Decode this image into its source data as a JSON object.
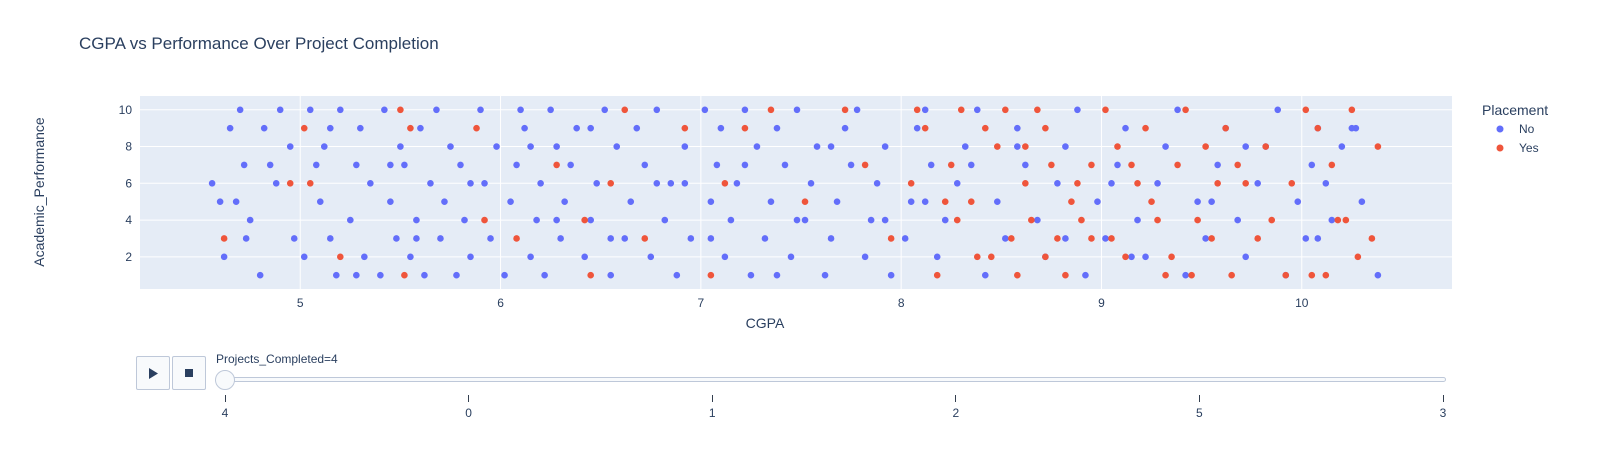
{
  "chart_data": {
    "type": "scatter",
    "title": "CGPA vs Performance Over Project Completion",
    "xlabel": "CGPA",
    "ylabel": "Academic_Performance",
    "xlim": [
      4.2,
      10.75
    ],
    "ylim": [
      0.25,
      10.75
    ],
    "xticks": [
      5,
      6,
      7,
      8,
      9,
      10
    ],
    "yticks": [
      2,
      4,
      6,
      8,
      10
    ],
    "grid": true,
    "background": "#e5ecf6",
    "legend": {
      "title": "Placement",
      "position": "right",
      "entries": [
        {
          "name": "No",
          "color": "#636efa"
        },
        {
          "name": "Yes",
          "color": "#ef553b"
        }
      ]
    },
    "series": [
      {
        "name": "No",
        "color": "#636efa",
        "points": [
          [
            4.56,
            6
          ],
          [
            4.6,
            5
          ],
          [
            4.65,
            9
          ],
          [
            4.62,
            2
          ],
          [
            4.7,
            10
          ],
          [
            4.68,
            5
          ],
          [
            4.72,
            7
          ],
          [
            4.75,
            4
          ],
          [
            4.73,
            3
          ],
          [
            4.8,
            1
          ],
          [
            4.82,
            9
          ],
          [
            4.85,
            7
          ],
          [
            4.9,
            10
          ],
          [
            4.88,
            6
          ],
          [
            4.95,
            8
          ],
          [
            4.97,
            3
          ],
          [
            5.02,
            2
          ],
          [
            5.05,
            10
          ],
          [
            5.08,
            7
          ],
          [
            5.1,
            5
          ],
          [
            5.12,
            8
          ],
          [
            5.15,
            3
          ],
          [
            5.18,
            1
          ],
          [
            5.2,
            10
          ],
          [
            5.25,
            4
          ],
          [
            5.28,
            7
          ],
          [
            5.3,
            9
          ],
          [
            5.32,
            2
          ],
          [
            5.35,
            6
          ],
          [
            5.4,
            1
          ],
          [
            5.42,
            10
          ],
          [
            5.45,
            5
          ],
          [
            5.48,
            3
          ],
          [
            5.5,
            8
          ],
          [
            5.52,
            7
          ],
          [
            5.55,
            2
          ],
          [
            5.58,
            4
          ],
          [
            5.6,
            9
          ],
          [
            5.62,
            1
          ],
          [
            5.65,
            6
          ],
          [
            5.68,
            10
          ],
          [
            5.7,
            3
          ],
          [
            5.72,
            5
          ],
          [
            5.75,
            8
          ],
          [
            5.78,
            1
          ],
          [
            5.8,
            7
          ],
          [
            5.82,
            4
          ],
          [
            5.85,
            2
          ],
          [
            5.9,
            10
          ],
          [
            5.92,
            6
          ],
          [
            5.95,
            3
          ],
          [
            5.98,
            8
          ],
          [
            6.02,
            1
          ],
          [
            6.05,
            5
          ],
          [
            6.08,
            7
          ],
          [
            6.1,
            10
          ],
          [
            6.12,
            9
          ],
          [
            6.15,
            2
          ],
          [
            6.18,
            4
          ],
          [
            6.2,
            6
          ],
          [
            6.22,
            1
          ],
          [
            6.25,
            10
          ],
          [
            6.28,
            8
          ],
          [
            6.3,
            3
          ],
          [
            6.32,
            5
          ],
          [
            6.35,
            7
          ],
          [
            6.38,
            9
          ],
          [
            6.42,
            2
          ],
          [
            6.45,
            4
          ],
          [
            6.48,
            6
          ],
          [
            6.52,
            10
          ],
          [
            6.55,
            1
          ],
          [
            6.58,
            8
          ],
          [
            6.62,
            3
          ],
          [
            6.65,
            5
          ],
          [
            6.68,
            9
          ],
          [
            6.72,
            7
          ],
          [
            6.75,
            2
          ],
          [
            6.78,
            10
          ],
          [
            6.82,
            4
          ],
          [
            6.85,
            6
          ],
          [
            6.88,
            1
          ],
          [
            6.92,
            8
          ],
          [
            6.95,
            3
          ],
          [
            7.02,
            10
          ],
          [
            7.05,
            5
          ],
          [
            7.08,
            7
          ],
          [
            7.1,
            9
          ],
          [
            7.12,
            2
          ],
          [
            7.15,
            4
          ],
          [
            7.18,
            6
          ],
          [
            7.22,
            10
          ],
          [
            7.25,
            1
          ],
          [
            7.28,
            8
          ],
          [
            7.32,
            3
          ],
          [
            7.35,
            5
          ],
          [
            7.38,
            9
          ],
          [
            7.42,
            7
          ],
          [
            7.45,
            2
          ],
          [
            7.48,
            10
          ],
          [
            7.52,
            4
          ],
          [
            7.55,
            6
          ],
          [
            7.58,
            8
          ],
          [
            7.62,
            1
          ],
          [
            7.65,
            3
          ],
          [
            7.68,
            5
          ],
          [
            7.72,
            9
          ],
          [
            7.75,
            7
          ],
          [
            7.78,
            10
          ],
          [
            7.82,
            2
          ],
          [
            7.85,
            4
          ],
          [
            7.88,
            6
          ],
          [
            7.92,
            8
          ],
          [
            7.95,
            1
          ],
          [
            8.02,
            3
          ],
          [
            8.05,
            5
          ],
          [
            8.08,
            9
          ],
          [
            8.12,
            10
          ],
          [
            8.15,
            7
          ],
          [
            8.18,
            2
          ],
          [
            8.22,
            4
          ],
          [
            8.28,
            6
          ],
          [
            8.32,
            8
          ],
          [
            8.38,
            10
          ],
          [
            8.42,
            1
          ],
          [
            8.48,
            5
          ],
          [
            8.52,
            3
          ],
          [
            8.58,
            9
          ],
          [
            8.62,
            7
          ],
          [
            8.68,
            4
          ],
          [
            8.72,
            2
          ],
          [
            8.78,
            6
          ],
          [
            8.82,
            8
          ],
          [
            8.88,
            10
          ],
          [
            8.92,
            1
          ],
          [
            8.98,
            5
          ],
          [
            9.02,
            3
          ],
          [
            9.08,
            7
          ],
          [
            9.12,
            9
          ],
          [
            9.18,
            4
          ],
          [
            9.22,
            2
          ],
          [
            9.28,
            6
          ],
          [
            9.32,
            8
          ],
          [
            9.38,
            10
          ],
          [
            9.42,
            1
          ],
          [
            9.48,
            5
          ],
          [
            9.52,
            3
          ],
          [
            9.58,
            7
          ],
          [
            9.62,
            9
          ],
          [
            9.68,
            4
          ],
          [
            9.72,
            2
          ],
          [
            9.78,
            6
          ],
          [
            9.82,
            8
          ],
          [
            9.88,
            10
          ],
          [
            9.92,
            1
          ],
          [
            9.98,
            5
          ],
          [
            10.02,
            3
          ],
          [
            10.05,
            7
          ],
          [
            10.08,
            9
          ],
          [
            10.12,
            6
          ],
          [
            10.15,
            4
          ],
          [
            10.2,
            8
          ],
          [
            10.25,
            9
          ],
          [
            10.27,
            9
          ],
          [
            10.3,
            5
          ],
          [
            10.38,
            1
          ],
          [
            7.05,
            3
          ],
          [
            6.15,
            8
          ],
          [
            5.58,
            3
          ],
          [
            6.78,
            6
          ],
          [
            7.48,
            4
          ],
          [
            8.58,
            8
          ],
          [
            9.05,
            6
          ],
          [
            5.28,
            1
          ],
          [
            6.45,
            9
          ],
          [
            7.92,
            4
          ],
          [
            8.35,
            7
          ],
          [
            9.55,
            5
          ],
          [
            6.92,
            6
          ],
          [
            5.15,
            9
          ],
          [
            7.65,
            8
          ],
          [
            8.82,
            3
          ],
          [
            9.15,
            2
          ],
          [
            6.28,
            4
          ],
          [
            7.22,
            7
          ],
          [
            5.85,
            6
          ],
          [
            8.12,
            5
          ],
          [
            9.72,
            8
          ],
          [
            6.55,
            3
          ],
          [
            7.38,
            1
          ],
          [
            5.45,
            7
          ],
          [
            10.08,
            3
          ]
        ]
      },
      {
        "name": "Yes",
        "color": "#ef553b",
        "points": [
          [
            4.62,
            3
          ],
          [
            4.95,
            6
          ],
          [
            5.02,
            9
          ],
          [
            5.05,
            6
          ],
          [
            5.2,
            2
          ],
          [
            5.5,
            10
          ],
          [
            5.52,
            1
          ],
          [
            5.55,
            9
          ],
          [
            5.88,
            9
          ],
          [
            5.92,
            4
          ],
          [
            6.08,
            3
          ],
          [
            6.28,
            7
          ],
          [
            6.42,
            4
          ],
          [
            6.45,
            1
          ],
          [
            6.55,
            6
          ],
          [
            6.62,
            10
          ],
          [
            6.72,
            3
          ],
          [
            6.92,
            9
          ],
          [
            7.05,
            1
          ],
          [
            7.12,
            6
          ],
          [
            7.22,
            9
          ],
          [
            7.35,
            10
          ],
          [
            7.52,
            5
          ],
          [
            7.72,
            10
          ],
          [
            7.82,
            7
          ],
          [
            7.95,
            3
          ],
          [
            8.05,
            6
          ],
          [
            8.08,
            10
          ],
          [
            8.12,
            9
          ],
          [
            8.18,
            1
          ],
          [
            8.25,
            7
          ],
          [
            8.28,
            4
          ],
          [
            8.3,
            10
          ],
          [
            8.35,
            5
          ],
          [
            8.38,
            2
          ],
          [
            8.42,
            9
          ],
          [
            8.48,
            8
          ],
          [
            8.52,
            10
          ],
          [
            8.55,
            3
          ],
          [
            8.58,
            1
          ],
          [
            8.62,
            6
          ],
          [
            8.65,
            4
          ],
          [
            8.68,
            10
          ],
          [
            8.72,
            9
          ],
          [
            8.75,
            7
          ],
          [
            8.78,
            3
          ],
          [
            8.82,
            1
          ],
          [
            8.85,
            5
          ],
          [
            8.9,
            4
          ],
          [
            8.95,
            7
          ],
          [
            9.02,
            10
          ],
          [
            9.05,
            3
          ],
          [
            9.08,
            8
          ],
          [
            9.12,
            2
          ],
          [
            9.18,
            6
          ],
          [
            9.22,
            9
          ],
          [
            9.28,
            4
          ],
          [
            9.32,
            1
          ],
          [
            9.38,
            7
          ],
          [
            9.42,
            10
          ],
          [
            9.45,
            1
          ],
          [
            9.48,
            4
          ],
          [
            9.52,
            8
          ],
          [
            9.55,
            3
          ],
          [
            9.58,
            6
          ],
          [
            9.62,
            9
          ],
          [
            9.65,
            1
          ],
          [
            9.72,
            6
          ],
          [
            9.78,
            3
          ],
          [
            9.82,
            8
          ],
          [
            9.85,
            4
          ],
          [
            9.92,
            1
          ],
          [
            9.95,
            6
          ],
          [
            10.02,
            10
          ],
          [
            10.05,
            1
          ],
          [
            10.08,
            9
          ],
          [
            10.12,
            1
          ],
          [
            10.15,
            7
          ],
          [
            10.22,
            4
          ],
          [
            10.25,
            10
          ],
          [
            10.28,
            2
          ],
          [
            10.35,
            3
          ],
          [
            10.38,
            8
          ],
          [
            8.45,
            2
          ],
          [
            8.72,
            2
          ],
          [
            9.15,
            7
          ],
          [
            9.35,
            2
          ],
          [
            8.22,
            5
          ],
          [
            8.95,
            3
          ],
          [
            9.68,
            7
          ],
          [
            10.18,
            4
          ],
          [
            8.62,
            8
          ],
          [
            9.25,
            5
          ],
          [
            8.88,
            6
          ]
        ]
      }
    ]
  },
  "animation": {
    "slider_label": "Projects_Completed=4",
    "steps": [
      "4",
      "0",
      "1",
      "2",
      "5",
      "3"
    ],
    "active_step": 0
  },
  "controls": {
    "play_icon": "play-icon",
    "stop_icon": "stop-icon"
  }
}
